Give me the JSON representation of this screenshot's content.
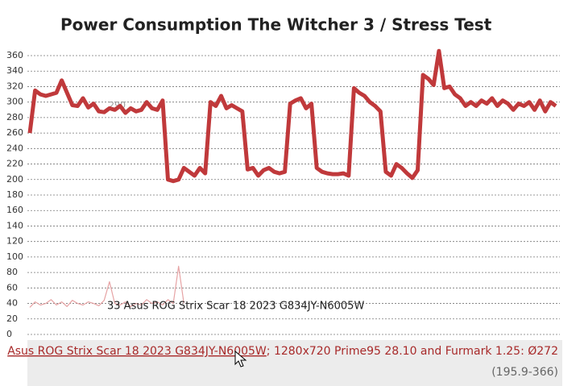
{
  "chart_data": {
    "type": "line",
    "title": "Power Consumption The Witcher 3 / Stress Test",
    "ylim": [
      0,
      360
    ],
    "yticks": [
      0,
      20,
      40,
      60,
      80,
      100,
      120,
      140,
      160,
      180,
      200,
      220,
      240,
      260,
      280,
      300,
      320,
      340,
      360
    ],
    "grid": true,
    "series": [
      {
        "name": "Asus ROG Strix Scar 18 2023 G834JY-N6005W",
        "color": "#c0393b",
        "width": 5,
        "values": [
          260,
          315,
          310,
          308,
          310,
          312,
          328,
          312,
          296,
          295,
          305,
          293,
          298,
          288,
          287,
          292,
          290,
          295,
          286,
          292,
          288,
          290,
          300,
          292,
          290,
          302,
          200,
          198,
          200,
          215,
          210,
          205,
          215,
          208,
          300,
          295,
          308,
          292,
          296,
          292,
          288,
          213,
          215,
          205,
          212,
          215,
          210,
          208,
          210,
          298,
          302,
          305,
          292,
          298,
          215,
          210,
          208,
          207,
          207,
          208,
          205,
          318,
          312,
          308,
          300,
          295,
          288,
          210,
          205,
          220,
          215,
          208,
          202,
          212,
          335,
          330,
          322,
          366,
          318,
          320,
          310,
          305,
          295,
          300,
          295,
          302,
          298,
          305,
          295,
          302,
          298,
          290,
          298,
          295,
          300,
          290,
          302,
          288,
          300,
          295
        ]
      },
      {
        "name": "33 Asus ROG Strix Scar 18 2023 G834JY-N6005W",
        "color": "#e6a3a4",
        "width": 1.2,
        "values": [
          35,
          42,
          38,
          40,
          45,
          38,
          42,
          36,
          44,
          40,
          38,
          42,
          40,
          37,
          44,
          68,
          40,
          38,
          42,
          36,
          40,
          38,
          45,
          40,
          42,
          38,
          45,
          40,
          88,
          40,
          null,
          null,
          null,
          null,
          null,
          null,
          null,
          null,
          null,
          null,
          null,
          null,
          null,
          null,
          null,
          null,
          null,
          null,
          null,
          null,
          null,
          null,
          null,
          null,
          null,
          null,
          null,
          null,
          null,
          null,
          null,
          null,
          null,
          null,
          null,
          null,
          null,
          null,
          null,
          null,
          null,
          null,
          null,
          null,
          null,
          null,
          null,
          null,
          null,
          null,
          null,
          null,
          null,
          null,
          null,
          null,
          null,
          null,
          null,
          null,
          null,
          null,
          null,
          null,
          null,
          null,
          null,
          null,
          null,
          null
        ]
      }
    ],
    "annotation": "290"
  },
  "footer": {
    "link": "Asus ROG Strix Scar 18 2023 G834JY-N6005W",
    "text": "; 1280x720 Prime95 28.10 and Furmark 1.25: Ø272",
    "range": "(195.9-366)"
  }
}
